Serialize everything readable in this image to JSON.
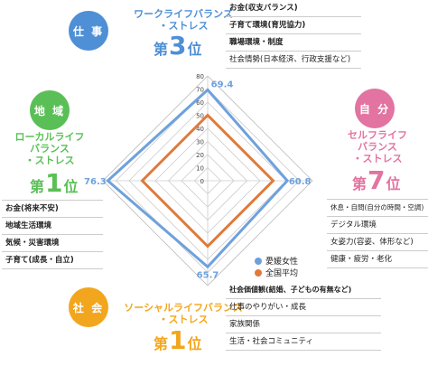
{
  "categories": {
    "work": {
      "badge": "仕 事",
      "title_lines": [
        "ワークライフバランス",
        "・ストレス"
      ],
      "rank_prefix": "第",
      "rank": "3",
      "rank_suffix": "位",
      "color": "#4e8fd6",
      "items": [
        "お金(収支バランス)",
        "子育て環境(育児協力)",
        "職場環境・制度",
        "社会情勢(日本経済、行政支援など)"
      ]
    },
    "local": {
      "badge": "地 域",
      "title_lines": [
        "ローカルライフ",
        "バランス",
        "・ストレス"
      ],
      "rank_prefix": "第",
      "rank": "1",
      "rank_suffix": "位",
      "color": "#5bbf57",
      "items": [
        "お金(将来不安)",
        "地域生活環境",
        "気候・災害環境",
        "子育て(成長・自立)"
      ]
    },
    "self": {
      "badge": "自 分",
      "title_lines": [
        "セルフライフ",
        "バランス",
        "・ストレス"
      ],
      "rank_prefix": "第",
      "rank": "7",
      "rank_suffix": "位",
      "color": "#e373a0",
      "items": [
        "休息・自問(自分の時間・空調)",
        "デジタル環境",
        "女姿力(容姿、体形など)",
        "健康・疲労・老化"
      ]
    },
    "social": {
      "badge": "社 会",
      "title_lines": [
        "ソーシャルライフバランス",
        "・ストレス"
      ],
      "rank_prefix": "第",
      "rank": "1",
      "rank_suffix": "位",
      "color": "#f2a61e",
      "items": [
        "社会価値観(結婚、子どもの有無など)",
        "仕事のやりがい・成長",
        "家族関係",
        "生活・社会コミュニティ"
      ]
    }
  },
  "chart_data": {
    "type": "radar",
    "axes": [
      "仕事",
      "自分",
      "社会",
      "地域"
    ],
    "ticks": [
      0,
      10,
      20,
      30,
      40,
      50,
      60,
      70,
      80
    ],
    "range": [
      0,
      80
    ],
    "series": [
      {
        "name": "愛媛女性",
        "values": [
          69.4,
          60.8,
          65.7,
          76.3
        ],
        "color": "#6ea1dc"
      },
      {
        "name": "全国平均",
        "values": [
          50,
          50,
          50,
          50
        ],
        "color": "#e07a3a"
      }
    ],
    "value_labels": [
      "69.4",
      "60.8",
      "65.7",
      "76.3"
    ]
  }
}
